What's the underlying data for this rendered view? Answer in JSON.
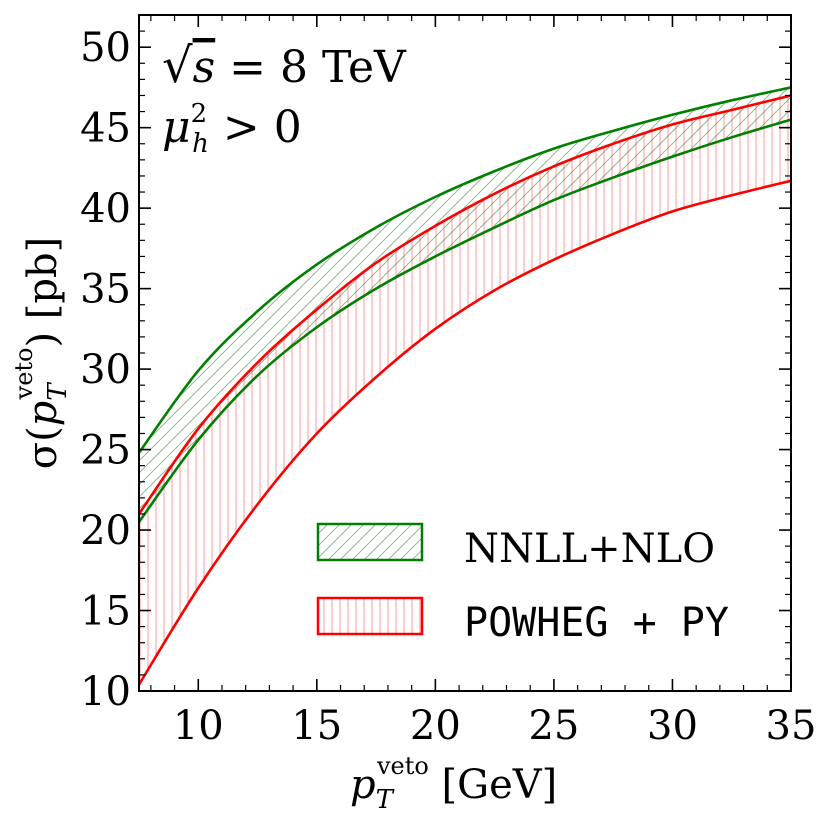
{
  "colors": {
    "nnll": "#008000",
    "powheg": "#ff0000",
    "axis": "#000000"
  },
  "annotations": {
    "sqrt_s_prefix": "√",
    "sqrt_s_var": "s",
    "sqrt_s_rest": " = 8 TeV",
    "mu_var": "μ",
    "mu_sup": "2",
    "mu_sub": "h",
    "mu_rest": " > 0"
  },
  "axes": {
    "x_title_var": "p",
    "x_title_sub": "T",
    "x_title_sup": "veto",
    "x_title_unit": " [GeV]",
    "y_title_pre": "σ(",
    "y_title_var": "p",
    "y_title_sub": "T",
    "y_title_sup": "veto",
    "y_title_post": ") [pb]"
  },
  "legend": {
    "items": [
      {
        "label": "NNLL+NLO",
        "series": "NNLL+NLO"
      },
      {
        "label": "POWHEG + PY",
        "series": "POWHEG + PY"
      }
    ]
  },
  "chart_data": {
    "type": "area",
    "title": "",
    "xlabel": "p_T^veto [GeV]",
    "ylabel": "σ(p_T^veto) [pb]",
    "xlim": [
      7.5,
      35
    ],
    "ylim": [
      10,
      52
    ],
    "xticks": [
      10,
      15,
      20,
      25,
      30,
      35
    ],
    "yticks": [
      10,
      15,
      20,
      25,
      30,
      35,
      40,
      45,
      50
    ],
    "legend_position": "lower-right",
    "annotations": [
      "√s = 8 TeV",
      "μ_h^2 > 0"
    ],
    "x": [
      7.5,
      10,
      12.5,
      15,
      17.5,
      20,
      22.5,
      25,
      27.5,
      30,
      32.5,
      35
    ],
    "series": [
      {
        "name": "NNLL+NLO",
        "hatch": "diagonal",
        "upper": [
          24.8,
          29.9,
          33.6,
          36.5,
          38.8,
          40.7,
          42.3,
          43.7,
          44.8,
          45.8,
          46.7,
          47.5
        ],
        "lower": [
          20.5,
          25.6,
          29.6,
          32.6,
          35.0,
          37.0,
          38.8,
          40.5,
          41.9,
          43.2,
          44.4,
          45.5
        ]
      },
      {
        "name": "POWHEG + PY",
        "hatch": "vertical",
        "upper": [
          21.0,
          26.3,
          30.4,
          33.7,
          36.6,
          38.9,
          40.9,
          42.6,
          44.0,
          45.2,
          46.1,
          47.0
        ],
        "lower": [
          10.4,
          16.4,
          21.6,
          26.0,
          29.5,
          32.5,
          34.9,
          36.8,
          38.4,
          39.8,
          40.8,
          41.7
        ]
      }
    ]
  }
}
